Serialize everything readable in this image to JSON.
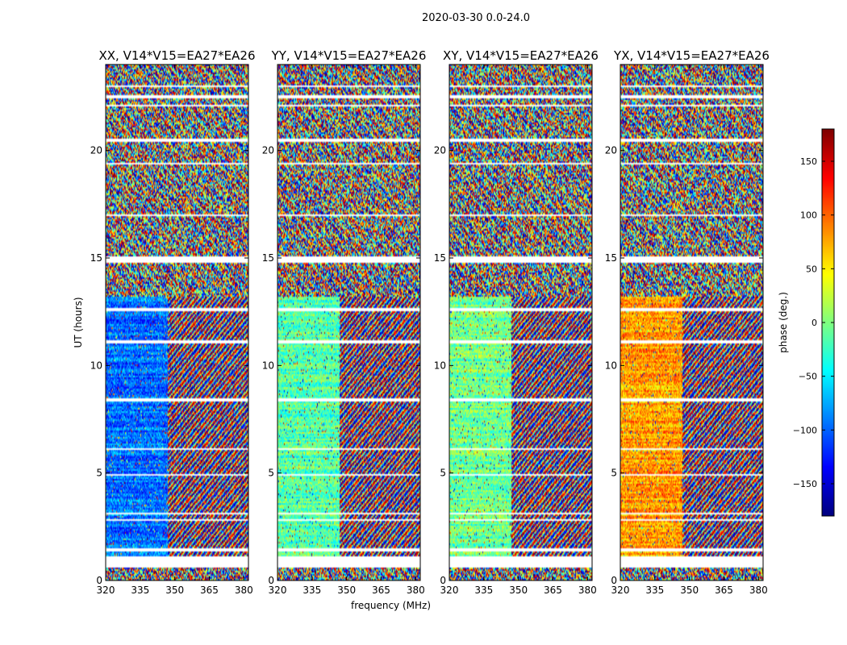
{
  "figure_title": "2020-03-30 0.0-24.0",
  "colors": {
    "bg": "#ffffff",
    "axis": "#000000",
    "flagged": "#ffffff"
  },
  "chart_data": [
    {
      "type": "heatmap",
      "title": "XX, V14*V15=EA27*EA26",
      "polarization": "XX",
      "xlabel": "",
      "ylabel": "UT (hours)",
      "xlim": [
        320,
        382
      ],
      "ylim": [
        0,
        24
      ],
      "xticks": [
        320,
        335,
        350,
        365,
        380
      ],
      "yticks": [
        0,
        5,
        10,
        15,
        20
      ],
      "base_phase": -95
    },
    {
      "type": "heatmap",
      "title": "YY, V14*V15=EA27*EA26",
      "polarization": "YY",
      "xlabel": "frequency (MHz)",
      "ylabel": "",
      "xlim": [
        320,
        382
      ],
      "ylim": [
        0,
        24
      ],
      "xticks": [
        320,
        335,
        350,
        365,
        380
      ],
      "yticks": [
        0,
        5,
        10,
        15,
        20
      ],
      "base_phase": -15
    },
    {
      "type": "heatmap",
      "title": "XY, V14*V15=EA27*EA26",
      "polarization": "XY",
      "xlabel": "",
      "ylabel": "",
      "xlim": [
        320,
        382
      ],
      "ylim": [
        0,
        24
      ],
      "xticks": [
        320,
        335,
        350,
        365,
        380
      ],
      "yticks": [
        0,
        5,
        10,
        15,
        20
      ],
      "base_phase": -5
    },
    {
      "type": "heatmap",
      "title": "YX, V14*V15=EA27*EA26",
      "polarization": "YX",
      "xlabel": "",
      "ylabel": "",
      "xlim": [
        320,
        382
      ],
      "ylim": [
        0,
        24
      ],
      "xticks": [
        320,
        335,
        350,
        365,
        380
      ],
      "yticks": [
        0,
        5,
        10,
        15,
        20
      ],
      "base_phase": 80
    }
  ],
  "colorbar": {
    "label": "phase (deg.)",
    "range": [
      -180,
      180
    ],
    "ticks": [
      150,
      100,
      50,
      0,
      -50,
      -100,
      -150
    ],
    "tick_labels": [
      "150",
      "100",
      "50",
      "0",
      "−50",
      "−100",
      "−150"
    ]
  },
  "flag_bands_hours": [
    [
      0.6,
      1.1
    ],
    [
      1.35,
      1.5
    ],
    [
      2.75,
      2.85
    ],
    [
      3.05,
      3.15
    ],
    [
      4.85,
      4.95
    ],
    [
      6.05,
      6.12
    ],
    [
      8.35,
      8.45
    ],
    [
      11.05,
      11.15
    ],
    [
      12.55,
      12.65
    ],
    [
      14.8,
      15.1
    ],
    [
      16.95,
      17.05
    ],
    [
      19.35,
      19.45
    ],
    [
      20.4,
      20.55
    ],
    [
      22.05,
      22.15
    ],
    [
      22.45,
      22.6
    ],
    [
      22.95,
      23.05
    ]
  ],
  "active_bands_hours": [
    [
      1.1,
      1.35
    ],
    [
      1.5,
      2.75
    ],
    [
      2.85,
      3.05
    ],
    [
      3.15,
      4.85
    ],
    [
      4.95,
      6.05
    ],
    [
      6.12,
      8.35
    ],
    [
      8.45,
      11.05
    ],
    [
      11.15,
      12.55
    ],
    [
      12.65,
      13.2
    ],
    [
      13.2,
      14.8
    ],
    [
      15.1,
      16.95
    ],
    [
      17.05,
      19.35
    ],
    [
      19.45,
      20.4
    ],
    [
      20.55,
      22.05
    ],
    [
      22.15,
      22.45
    ]
  ],
  "rfi_boundary_mhz": 347,
  "noisy_above_hours": 13.2
}
